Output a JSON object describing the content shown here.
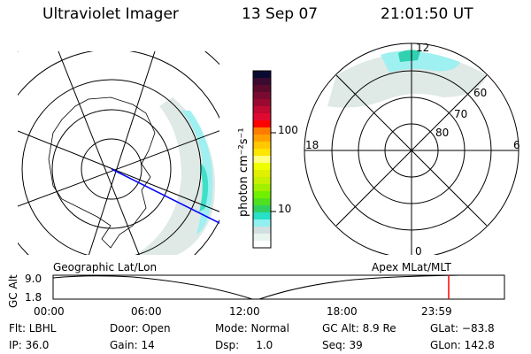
{
  "header": {
    "instrument": "Ultraviolet Imager",
    "date": "13 Sep 07",
    "time": "21:01:50 UT"
  },
  "colorbar": {
    "unit_label": "photon cm⁻²s⁻¹",
    "tick_labels": [
      "100",
      "10"
    ],
    "colors": [
      "#0a0a30",
      "#3a0a30",
      "#5a0a2a",
      "#7a0a30",
      "#9a0a30",
      "#c00a30",
      "#e00a30",
      "#ff0000",
      "#ff7a00",
      "#ffa000",
      "#ffc800",
      "#ffe600",
      "#ffff80",
      "#f0ff00",
      "#e0f000",
      "#c8f000",
      "#a0f000",
      "#70f000",
      "#50e020",
      "#30d060",
      "#28e0c8",
      "#90f0f0",
      "#d0e0e0",
      "#e8f4ee",
      "#ffffff"
    ]
  },
  "geo_map": {
    "label": "Geographic Lat/Lon",
    "track_color": "#0000ff"
  },
  "mlat_map": {
    "label": "Apex MLat/MLT",
    "mlt_labels": [
      "12",
      "6",
      "0",
      "18"
    ],
    "lat_labels": [
      "60",
      "70",
      "80"
    ]
  },
  "altitude_plot": {
    "ylabel": "GC Alt",
    "y_ticks": [
      "9.0",
      "1.8"
    ],
    "x_ticks": [
      "00:00",
      "06:00",
      "12:00",
      "18:00",
      "23:59"
    ],
    "marker_color": "#ff0000",
    "marker_time": "21:01:50"
  },
  "status": {
    "row1": [
      "Flt: LBHL",
      "Door: Open",
      "Mode: Normal",
      "GC Alt: 8.9 Re",
      "GLat: −83.8"
    ],
    "row2": [
      "IP: 36.0",
      "Gain: 14",
      "Dsp:     1.0",
      "Seq: 39",
      "GLon: 142.8"
    ]
  }
}
